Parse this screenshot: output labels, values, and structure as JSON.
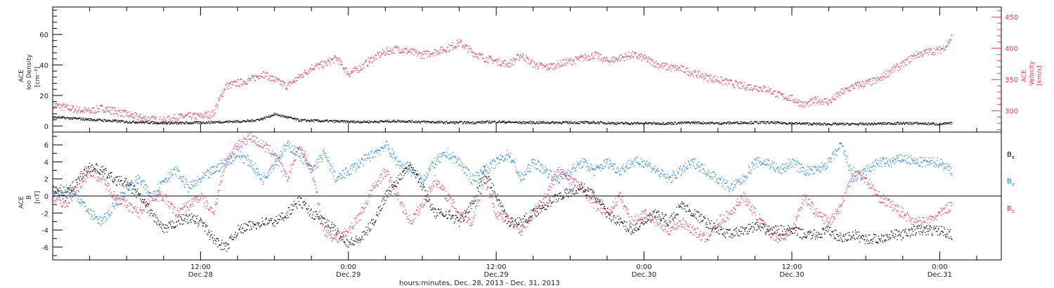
{
  "colors": {
    "black": "#000000",
    "red": "#e8365d",
    "blue": "#1c7fe0"
  },
  "x_axis": {
    "title": "hours:minutes, Dec. 28, 2013 - Dec. 31, 2013",
    "ticks": [
      {
        "t": 12,
        "time": "12:00",
        "date": "Dec.28"
      },
      {
        "t": 24,
        "time": "0:00",
        "date": "Dec.29"
      },
      {
        "t": 36,
        "time": "12:00",
        "date": "Dec.29"
      },
      {
        "t": 48,
        "time": "0:00",
        "date": "Dec.30"
      },
      {
        "t": 60,
        "time": "12:00",
        "date": "Dec.30"
      },
      {
        "t": 72,
        "time": "0:00",
        "date": "Dec.31"
      }
    ]
  },
  "chart_data": [
    {
      "type": "scatter",
      "panel": "top",
      "ylabel_left": [
        "ACE",
        "Ion Density",
        "[cm⁻³]"
      ],
      "ylabel_right": [
        "ACE",
        "Velocity",
        "[km/s]"
      ],
      "xlim_hours": [
        0,
        77
      ],
      "ylim_left": [
        -4,
        78
      ],
      "ylim_right": [
        266,
        466
      ],
      "left_ticks": [
        0,
        20,
        40,
        60
      ],
      "right_ticks": [
        300,
        350,
        400,
        450
      ],
      "series": [
        {
          "name": "Ion Density",
          "axis": "left",
          "color": "black",
          "x": [
            0,
            2,
            4,
            6,
            8,
            10,
            12,
            14,
            16,
            17,
            18,
            19,
            20,
            22,
            24,
            26,
            28,
            30,
            32,
            34,
            36,
            38,
            40,
            42,
            44,
            46,
            48,
            50,
            52,
            54,
            56,
            58,
            60,
            62,
            64,
            66,
            68,
            70,
            72,
            73
          ],
          "y": [
            6,
            5,
            4,
            3,
            2.5,
            2,
            2.5,
            3,
            3.5,
            5,
            8,
            6,
            4,
            3.5,
            3,
            3,
            3.5,
            3,
            2.5,
            2.5,
            3,
            2.5,
            2.5,
            2.5,
            2.5,
            2,
            2,
            2,
            2.5,
            2,
            2.5,
            2.5,
            2,
            1.5,
            1.5,
            1.5,
            2,
            2,
            1.5,
            2
          ]
        },
        {
          "name": "Velocity",
          "axis": "right",
          "color": "red",
          "x": [
            0,
            1,
            2,
            3,
            4,
            5,
            6,
            7,
            8,
            9,
            10,
            11,
            12,
            13,
            14,
            15,
            16,
            17,
            18,
            19,
            20,
            21,
            22,
            23,
            24,
            25,
            26,
            27,
            28,
            29,
            30,
            31,
            32,
            33,
            34,
            35,
            36,
            37,
            38,
            39,
            40,
            41,
            42,
            43,
            44,
            45,
            46,
            47,
            48,
            49,
            50,
            51,
            52,
            53,
            54,
            55,
            56,
            57,
            58,
            59,
            60,
            61,
            62,
            63,
            64,
            65,
            66,
            67,
            68,
            69,
            70,
            71,
            72,
            72.5,
            73
          ],
          "y": [
            310,
            306,
            302,
            300,
            305,
            300,
            295,
            290,
            287,
            285,
            290,
            292,
            292,
            296,
            340,
            345,
            350,
            360,
            350,
            340,
            355,
            370,
            375,
            385,
            360,
            370,
            385,
            395,
            400,
            395,
            390,
            395,
            400,
            410,
            395,
            385,
            380,
            375,
            390,
            375,
            370,
            375,
            380,
            385,
            390,
            380,
            385,
            390,
            385,
            375,
            370,
            368,
            360,
            355,
            350,
            345,
            340,
            338,
            335,
            325,
            320,
            310,
            318,
            315,
            330,
            340,
            345,
            350,
            365,
            375,
            390,
            395,
            398,
            405,
            420
          ]
        }
      ]
    },
    {
      "type": "scatter",
      "panel": "bottom",
      "ylabel": [
        "ACE",
        "B",
        "[nT]"
      ],
      "xlim_hours": [
        0,
        77
      ],
      "ylim": [
        -7.5,
        7.5
      ],
      "y_ticks": [
        -6,
        -4,
        -2,
        0,
        2,
        4,
        6
      ],
      "zero_line": true,
      "series": [
        {
          "name": "Bx",
          "legend_base": "B",
          "legend_sub": "x",
          "color": "black",
          "x": [
            0,
            1,
            2,
            3,
            4,
            5,
            6,
            7,
            8,
            9,
            10,
            11,
            12,
            13,
            14,
            15,
            16,
            17,
            18,
            19,
            20,
            21,
            22,
            23,
            24,
            25,
            26,
            27,
            28,
            29,
            30,
            31,
            32,
            33,
            34,
            35,
            36,
            37,
            38,
            39,
            40,
            41,
            42,
            43,
            44,
            45,
            46,
            47,
            48,
            49,
            50,
            51,
            52,
            53,
            54,
            55,
            56,
            57,
            58,
            59,
            60,
            61,
            62,
            63,
            64,
            65,
            66,
            67,
            68,
            69,
            70,
            71,
            72,
            73
          ],
          "y": [
            1,
            0,
            2,
            3.5,
            3,
            2,
            1.5,
            0,
            -2,
            -4,
            -3,
            -2.5,
            -3,
            -5,
            -6,
            -4,
            -3.5,
            -3,
            -3,
            -2,
            -0.5,
            -2,
            -3,
            -4,
            -5.5,
            -5,
            -3,
            0,
            2,
            4,
            1,
            -2,
            -2,
            -3,
            -1,
            3,
            0,
            -3,
            -3,
            -2,
            -1,
            0,
            0.5,
            1,
            0,
            -2,
            -3,
            -4,
            -3,
            -2,
            -3,
            -1,
            -2,
            -3,
            -4,
            -4.5,
            -4,
            -3.5,
            -4,
            -4,
            -4,
            -4.5,
            -4.5,
            -4,
            -5,
            -4.5,
            -5,
            -5,
            -4.5,
            -4.5,
            -4,
            -4,
            -4,
            -4.5
          ]
        },
        {
          "name": "By",
          "legend_base": "B",
          "legend_sub": "y",
          "color": "blue",
          "x": [
            0,
            1,
            2,
            3,
            4,
            5,
            6,
            7,
            8,
            9,
            10,
            11,
            12,
            13,
            14,
            15,
            16,
            17,
            18,
            19,
            20,
            21,
            22,
            23,
            24,
            25,
            26,
            27,
            28,
            29,
            30,
            31,
            32,
            33,
            34,
            35,
            36,
            37,
            38,
            39,
            40,
            41,
            42,
            43,
            44,
            45,
            46,
            47,
            48,
            49,
            50,
            51,
            52,
            53,
            54,
            55,
            56,
            57,
            58,
            59,
            60,
            61,
            62,
            63,
            64,
            65,
            66,
            67,
            68,
            69,
            70,
            71,
            72,
            73
          ],
          "y": [
            0.5,
            1,
            0,
            -2,
            -3,
            -1,
            1,
            2,
            0,
            2,
            3,
            1,
            2,
            3,
            4,
            5,
            4,
            2,
            4,
            6,
            5,
            3,
            5,
            2,
            3,
            4,
            5,
            6,
            4,
            3,
            2,
            4,
            5,
            4,
            2,
            3,
            4,
            5,
            2,
            4,
            3,
            2,
            3,
            4,
            3,
            4,
            3,
            4,
            4,
            3,
            2,
            3,
            4,
            3,
            2,
            1,
            2,
            4,
            4,
            3,
            4,
            3,
            3,
            4,
            6,
            2,
            3,
            4,
            4,
            4.5,
            4,
            4,
            4,
            3
          ]
        },
        {
          "name": "Bz",
          "legend_base": "B",
          "legend_sub": "z",
          "color": "red",
          "x": [
            0,
            1,
            2,
            3,
            4,
            5,
            6,
            7,
            8,
            9,
            10,
            11,
            12,
            13,
            14,
            15,
            16,
            17,
            18,
            19,
            20,
            21,
            22,
            23,
            24,
            25,
            26,
            27,
            28,
            29,
            30,
            31,
            32,
            33,
            34,
            35,
            36,
            37,
            38,
            39,
            40,
            41,
            42,
            43,
            44,
            45,
            46,
            47,
            48,
            49,
            50,
            51,
            52,
            53,
            54,
            55,
            56,
            57,
            58,
            59,
            60,
            61,
            62,
            63,
            64,
            65,
            66,
            67,
            68,
            69,
            70,
            71,
            72,
            73
          ],
          "y": [
            0,
            -1,
            1,
            3,
            2,
            0,
            -1,
            -2,
            0,
            0,
            -2,
            -1,
            0,
            -2,
            4,
            6,
            7,
            6,
            5,
            2,
            6,
            3,
            -4,
            -5,
            -4,
            -2,
            1,
            3,
            0,
            -3,
            -1,
            2,
            0,
            -2,
            -3,
            2,
            -2,
            -3,
            -4,
            -2,
            0,
            3,
            2,
            1,
            -1,
            -2,
            0,
            -3,
            -2,
            -3,
            -4,
            -3,
            -4,
            -5,
            -3,
            -2,
            0,
            -2,
            -4,
            -5,
            -4,
            0,
            -2,
            -3,
            -1,
            3,
            2,
            0,
            -1,
            -2,
            -3,
            -3,
            -2,
            -1
          ]
        }
      ]
    }
  ]
}
